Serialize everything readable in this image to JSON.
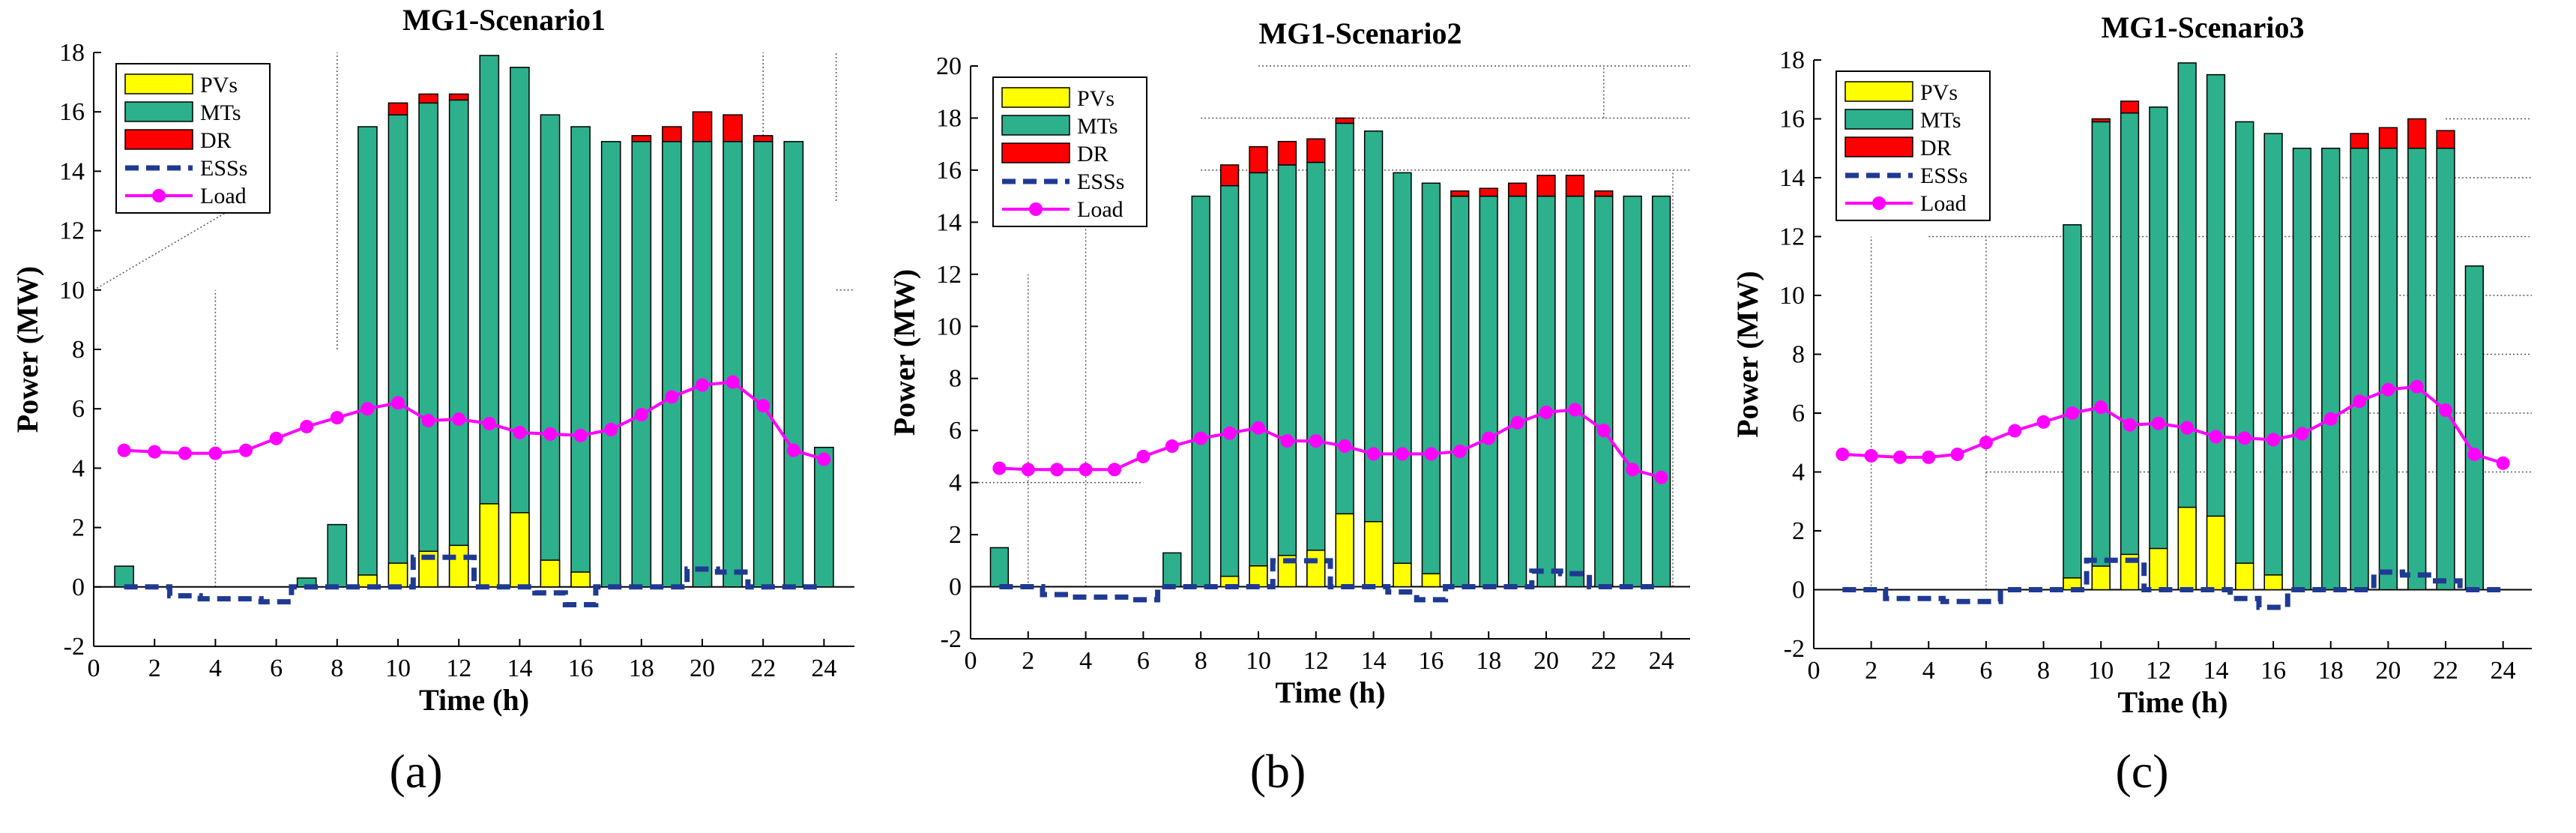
{
  "colors": {
    "pv": "#ffff00",
    "mt": "#2db08c",
    "dr": "#ff0000",
    "ess": "#1f3a93",
    "load": "#ff00ff",
    "grid": "#555555"
  },
  "legend": [
    "PVs",
    "MTs",
    "DR",
    "ESSs",
    "Load"
  ],
  "chart_data": [
    {
      "type": "bar",
      "panel": "a",
      "caption": "(a)",
      "title": "MG1-Scenario1",
      "xlabel": "Time (h)",
      "ylabel": "Power (MW)",
      "xlim": [
        0,
        25
      ],
      "ylim": [
        -2,
        18
      ],
      "xticks": [
        0,
        2,
        4,
        6,
        8,
        10,
        12,
        14,
        16,
        18,
        20,
        22,
        24
      ],
      "yticks": [
        -2,
        0,
        2,
        4,
        6,
        8,
        10,
        12,
        14,
        16,
        18
      ],
      "hours": [
        1,
        2,
        3,
        4,
        5,
        6,
        7,
        8,
        9,
        10,
        11,
        12,
        13,
        14,
        15,
        16,
        17,
        18,
        19,
        20,
        21,
        22,
        23,
        24
      ],
      "series": [
        {
          "name": "PVs",
          "values": [
            0,
            0,
            0,
            0,
            0,
            0,
            0,
            0,
            0.4,
            0.8,
            1.2,
            1.4,
            2.8,
            2.5,
            0.9,
            0.5,
            0,
            0,
            0,
            0,
            0,
            0,
            0,
            0
          ]
        },
        {
          "name": "MTs",
          "values": [
            0.7,
            0,
            0,
            0,
            0,
            0,
            0.3,
            2.1,
            15.5,
            15.9,
            16.3,
            16.4,
            17.9,
            17.5,
            15.9,
            15.5,
            15.0,
            15.0,
            15.0,
            15.0,
            15.0,
            15.0,
            15.0,
            4.7
          ]
        },
        {
          "name": "DR",
          "values": [
            0,
            0,
            0,
            0,
            0,
            0,
            0,
            0,
            0,
            0.4,
            0.3,
            0.2,
            0,
            0,
            0,
            0,
            0,
            0.2,
            0.5,
            1.0,
            0.9,
            0.2,
            0,
            0
          ]
        },
        {
          "name": "ESSs",
          "values": [
            0,
            0,
            -0.3,
            -0.4,
            -0.4,
            -0.5,
            0,
            0,
            0,
            0,
            1.0,
            1.0,
            0,
            0,
            -0.2,
            -0.6,
            0,
            0,
            0,
            0.6,
            0.5,
            0,
            0,
            0
          ]
        },
        {
          "name": "Load",
          "values": [
            4.6,
            4.55,
            4.5,
            4.5,
            4.6,
            5.0,
            5.4,
            5.7,
            6.0,
            6.2,
            5.6,
            5.65,
            5.5,
            5.2,
            5.15,
            5.1,
            5.3,
            5.8,
            6.4,
            6.8,
            6.9,
            6.1,
            4.6,
            4.3
          ]
        }
      ]
    },
    {
      "type": "bar",
      "panel": "b",
      "caption": "(b)",
      "title": "MG1-Scenario2",
      "xlabel": "Time (h)",
      "ylabel": "Power (MW)",
      "xlim": [
        0,
        25
      ],
      "ylim": [
        -2,
        20
      ],
      "xticks": [
        0,
        2,
        4,
        6,
        8,
        10,
        12,
        14,
        16,
        18,
        20,
        22,
        24
      ],
      "yticks": [
        -2,
        0,
        2,
        4,
        6,
        8,
        10,
        12,
        14,
        16,
        18,
        20
      ],
      "hours": [
        1,
        2,
        3,
        4,
        5,
        6,
        7,
        8,
        9,
        10,
        11,
        12,
        13,
        14,
        15,
        16,
        17,
        18,
        19,
        20,
        21,
        22,
        23,
        24
      ],
      "series": [
        {
          "name": "PVs",
          "values": [
            0,
            0,
            0,
            0,
            0,
            0,
            0,
            0,
            0.4,
            0.8,
            1.2,
            1.4,
            2.8,
            2.5,
            0.9,
            0.5,
            0,
            0,
            0,
            0,
            0,
            0,
            0,
            0
          ]
        },
        {
          "name": "MTs",
          "values": [
            1.5,
            0,
            0,
            0,
            0,
            0,
            1.3,
            15.0,
            15.4,
            15.9,
            16.2,
            16.3,
            17.8,
            17.5,
            15.9,
            15.5,
            15.0,
            15.0,
            15.0,
            15.0,
            15.0,
            15.0,
            15.0,
            15.0
          ]
        },
        {
          "name": "DR",
          "values": [
            0,
            0,
            0,
            0,
            0,
            0,
            0,
            0,
            0.8,
            1.0,
            0.9,
            0.9,
            0.2,
            0,
            0,
            0,
            0.2,
            0.3,
            0.5,
            0.8,
            0.8,
            0.2,
            0,
            0
          ]
        },
        {
          "name": "ESSs",
          "values": [
            0,
            0,
            -0.3,
            -0.4,
            -0.4,
            -0.5,
            0,
            0,
            0,
            0,
            1.0,
            1.0,
            0,
            0,
            -0.2,
            -0.5,
            0,
            0,
            0,
            0.6,
            0.5,
            0,
            0,
            0
          ]
        },
        {
          "name": "Load",
          "values": [
            4.55,
            4.5,
            4.5,
            4.5,
            4.5,
            5.0,
            5.4,
            5.7,
            5.9,
            6.1,
            5.6,
            5.6,
            5.4,
            5.1,
            5.1,
            5.1,
            5.2,
            5.7,
            6.3,
            6.7,
            6.8,
            6.0,
            4.5,
            4.2
          ]
        }
      ]
    },
    {
      "type": "bar",
      "panel": "c",
      "caption": "(c)",
      "title": "MG1-Scenario3",
      "xlabel": "Time (h)",
      "ylabel": "Power (MW)",
      "xlim": [
        0,
        25
      ],
      "ylim": [
        -2,
        18
      ],
      "xticks": [
        0,
        2,
        4,
        6,
        8,
        10,
        12,
        14,
        16,
        18,
        20,
        22,
        24
      ],
      "yticks": [
        -2,
        0,
        2,
        4,
        6,
        8,
        10,
        12,
        14,
        16,
        18
      ],
      "hours": [
        1,
        2,
        3,
        4,
        5,
        6,
        7,
        8,
        9,
        10,
        11,
        12,
        13,
        14,
        15,
        16,
        17,
        18,
        19,
        20,
        21,
        22,
        23,
        24
      ],
      "series": [
        {
          "name": "PVs",
          "values": [
            0,
            0,
            0,
            0,
            0,
            0,
            0,
            0,
            0.4,
            0.8,
            1.2,
            1.4,
            2.8,
            2.5,
            0.9,
            0.5,
            0,
            0,
            0,
            0,
            0,
            0,
            0,
            0
          ]
        },
        {
          "name": "MTs",
          "values": [
            0,
            0,
            0,
            0,
            0,
            0,
            0,
            0,
            12.4,
            15.9,
            16.2,
            16.4,
            17.9,
            17.5,
            15.9,
            15.5,
            15.0,
            15.0,
            15.0,
            15.0,
            15.0,
            15.0,
            11.0,
            0
          ]
        },
        {
          "name": "DR",
          "values": [
            0,
            0,
            0,
            0,
            0,
            0,
            0,
            0,
            0,
            0.1,
            0.4,
            0,
            0,
            0,
            0,
            0,
            0,
            0,
            0.5,
            0.7,
            1.0,
            0.6,
            0,
            0
          ]
        },
        {
          "name": "ESSs",
          "values": [
            0,
            0,
            -0.3,
            -0.3,
            -0.4,
            -0.4,
            0,
            0,
            0,
            1.0,
            1.0,
            0,
            0,
            0,
            -0.3,
            -0.6,
            0,
            0,
            0,
            0.6,
            0.5,
            0.3,
            0,
            0
          ]
        },
        {
          "name": "Load",
          "values": [
            4.6,
            4.55,
            4.5,
            4.5,
            4.6,
            5.0,
            5.4,
            5.7,
            6.0,
            6.2,
            5.6,
            5.65,
            5.5,
            5.2,
            5.15,
            5.1,
            5.3,
            5.8,
            6.4,
            6.8,
            6.9,
            6.1,
            4.6,
            4.3
          ]
        }
      ]
    }
  ]
}
